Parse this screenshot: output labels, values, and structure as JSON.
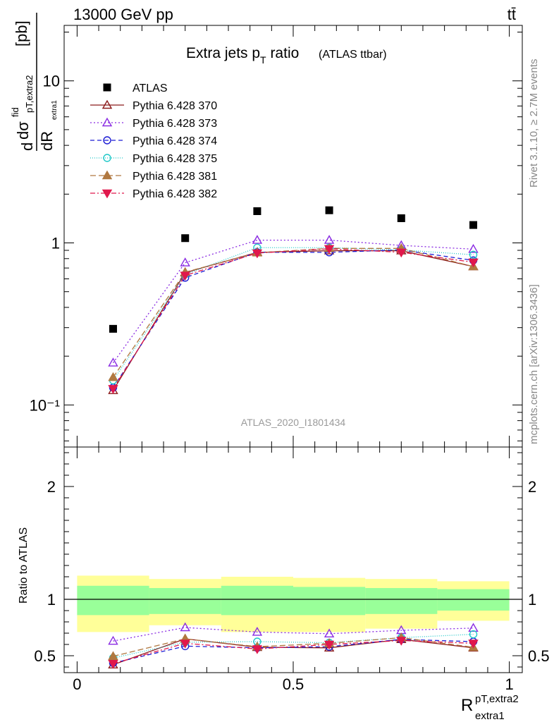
{
  "header": {
    "left": "13000 GeV pp",
    "right": "tt̄"
  },
  "title": {
    "main": "Extra jets p",
    "sub": "T",
    "after": " ratio",
    "paren": "(ATLAS ttbar)"
  },
  "side_labels": {
    "rivet": "Rivet 3.1.10, ≥ 2.7M events",
    "mcplots": "mcplots.cern.ch [arXiv:1306.3436]"
  },
  "analysis_id": "ATLAS_2020_I1801434",
  "ylabel_main": {
    "d1": "d",
    "sigma": "dσ",
    "fid": "fid",
    "sub": "pT,extra2",
    "sub2": "extra1",
    "den": "dR",
    "unit": "[pb]"
  },
  "ylabel_ratio": "Ratio to ATLAS",
  "xlabel": {
    "main": "R",
    "sup": "pT,extra2",
    "sub": "extra1"
  },
  "colors": {
    "ATLAS": "#000000",
    "370": "#8b1a1a",
    "373": "#8a2be2",
    "374": "#1c1cd4",
    "375": "#20c8c8",
    "381": "#b07840",
    "382": "#e0184c",
    "band_inner": "#99ff99",
    "band_outer": "#ffff99"
  },
  "chart_data": [
    {
      "type": "scatter",
      "panel": "main",
      "log_y": true,
      "ylim": [
        0.055,
        22
      ],
      "xlim": [
        -0.03,
        1.03
      ],
      "y_ticks": [
        {
          "v": 0.1,
          "label": "10⁻¹"
        },
        {
          "v": 1,
          "label": "1"
        },
        {
          "v": 10,
          "label": "10"
        }
      ],
      "legend_position": "top-left",
      "x": [
        0.0833,
        0.25,
        0.4167,
        0.5833,
        0.75,
        0.9167
      ],
      "x_edges": [
        0,
        0.1667,
        0.3333,
        0.5,
        0.6667,
        0.8333,
        1.0
      ],
      "series": [
        {
          "name": "ATLAS",
          "key": "ATLAS",
          "marker": "square",
          "line": "none",
          "values": [
            0.295,
            1.07,
            1.57,
            1.59,
            1.42,
            1.29
          ]
        },
        {
          "name": "Pythia 6.428 370",
          "key": "370",
          "marker": "triangle-open",
          "line": "solid",
          "values": [
            0.123,
            0.655,
            0.875,
            0.895,
            0.895,
            0.715
          ]
        },
        {
          "name": "Pythia 6.428 373",
          "key": "373",
          "marker": "triangle-open",
          "line": "dotted",
          "values": [
            0.182,
            0.755,
            1.04,
            1.04,
            0.965,
            0.915
          ]
        },
        {
          "name": "Pythia 6.428 374",
          "key": "374",
          "marker": "circle-open",
          "line": "dashed",
          "values": [
            0.128,
            0.61,
            0.875,
            0.875,
            0.905,
            0.78
          ]
        },
        {
          "name": "Pythia 6.428 375",
          "key": "375",
          "marker": "circle-open",
          "line": "dotted-dense",
          "values": [
            0.142,
            0.64,
            0.935,
            0.935,
            0.905,
            0.845
          ]
        },
        {
          "name": "Pythia 6.428 381",
          "key": "381",
          "marker": "triangle-filled",
          "line": "dashed-long",
          "values": [
            0.148,
            0.66,
            0.87,
            0.925,
            0.925,
            0.715
          ]
        },
        {
          "name": "Pythia 6.428 382",
          "key": "382",
          "marker": "triangle-down-filled",
          "line": "dashdot",
          "values": [
            0.126,
            0.63,
            0.865,
            0.92,
            0.875,
            0.76
          ]
        }
      ]
    },
    {
      "type": "scatter",
      "panel": "ratio",
      "ylim": [
        0.35,
        2.35
      ],
      "xlim": [
        -0.03,
        1.03
      ],
      "y_ticks": [
        0.5,
        1,
        2
      ],
      "x_ticks": [
        0,
        0.5,
        1
      ],
      "x": [
        0.0833,
        0.25,
        0.4167,
        0.5833,
        0.75,
        0.9167
      ],
      "band_inner": [
        [
          0.86,
          1.12
        ],
        [
          0.87,
          1.1
        ],
        [
          0.86,
          1.12
        ],
        [
          0.86,
          1.11
        ],
        [
          0.87,
          1.1
        ],
        [
          0.9,
          1.09
        ]
      ],
      "band_outer": [
        [
          0.71,
          1.21
        ],
        [
          0.77,
          1.18
        ],
        [
          0.71,
          1.2
        ],
        [
          0.71,
          1.19
        ],
        [
          0.74,
          1.18
        ],
        [
          0.81,
          1.16
        ]
      ],
      "series": [
        {
          "name": "Pythia 6.428 370",
          "key": "370",
          "values": [
            0.42,
            0.65,
            0.575,
            0.57,
            0.645,
            0.57
          ]
        },
        {
          "name": "Pythia 6.428 373",
          "key": "373",
          "values": [
            0.63,
            0.75,
            0.71,
            0.695,
            0.725,
            0.745
          ]
        },
        {
          "name": "Pythia 6.428 374",
          "key": "374",
          "values": [
            0.435,
            0.585,
            0.57,
            0.58,
            0.645,
            0.625
          ]
        },
        {
          "name": "Pythia 6.428 375",
          "key": "375",
          "values": [
            0.48,
            0.62,
            0.625,
            0.615,
            0.66,
            0.69
          ]
        },
        {
          "name": "Pythia 6.428 381",
          "key": "381",
          "values": [
            0.495,
            0.65,
            0.58,
            0.61,
            0.66,
            0.575
          ]
        },
        {
          "name": "Pythia 6.428 382",
          "key": "382",
          "values": [
            0.43,
            0.61,
            0.56,
            0.6,
            0.635,
            0.61
          ]
        }
      ]
    }
  ]
}
